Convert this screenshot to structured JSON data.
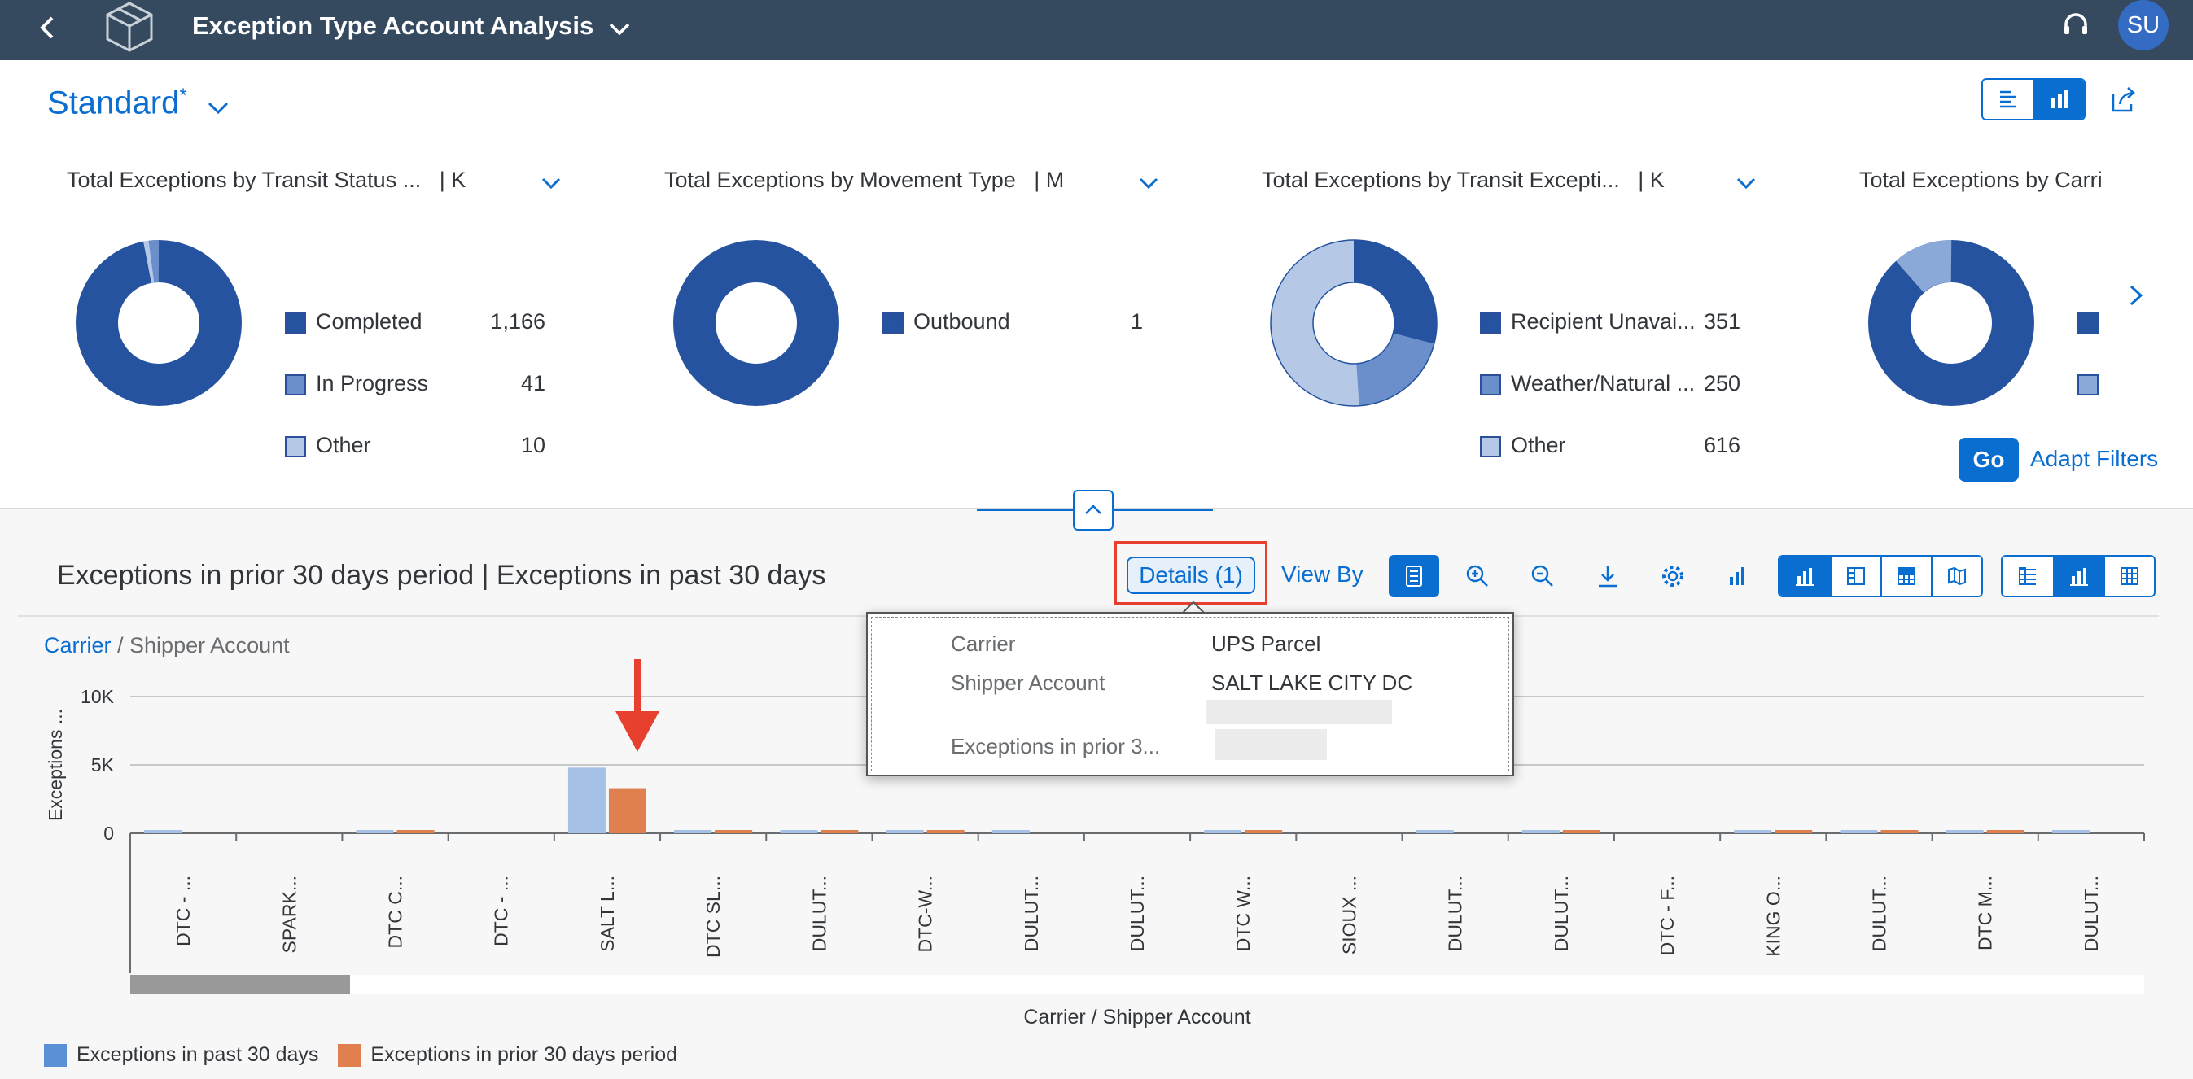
{
  "shell": {
    "title": "Exception Type Account Analysis",
    "avatar_initials": "SU"
  },
  "variant": {
    "name": "Standard",
    "dirty_marker": "*"
  },
  "cards": [
    {
      "title": "Total Exceptions by Transit Status ...",
      "unit": "| K",
      "legend": [
        {
          "label": "Completed",
          "value": "1,166",
          "color": "#2553a0"
        },
        {
          "label": "In Progress",
          "value": "41",
          "color": "#6a8fca"
        },
        {
          "label": "Other",
          "value": "10",
          "color": "#b5c8e6"
        }
      ]
    },
    {
      "title": "Total Exceptions by Movement Type",
      "unit": "| M",
      "legend": [
        {
          "label": "Outbound",
          "value": "1",
          "color": "#2553a0"
        }
      ]
    },
    {
      "title": "Total Exceptions by Transit Excepti...",
      "unit": "| K",
      "legend": [
        {
          "label": "Recipient Unavai...",
          "value": "351",
          "color": "#2553a0"
        },
        {
          "label": "Weather/Natural ...",
          "value": "250",
          "color": "#6a8fca"
        },
        {
          "label": "Other",
          "value": "616",
          "color": "#b5c8e6"
        }
      ]
    },
    {
      "title": "Total Exceptions by Carri",
      "unit": "",
      "legend": []
    }
  ],
  "filterbar": {
    "go_label": "Go",
    "adapt_label": "Adapt Filters"
  },
  "section": {
    "title": "Exceptions in prior 30 days period | Exceptions in past 30 days",
    "details_label": "Details (1)",
    "viewby_label": "View By"
  },
  "breadcrumb": {
    "link": "Carrier",
    "separator": " / ",
    "current": "Shipper Account"
  },
  "popover": {
    "rows": [
      {
        "key": "Carrier",
        "value": "UPS Parcel"
      },
      {
        "key": "Shipper Account",
        "value": "SALT LAKE CITY DC"
      },
      {
        "key": "Exceptions in prior 3...",
        "value": ""
      }
    ]
  },
  "chart_data": {
    "type": "bar",
    "xlabel": "Carrier / Shipper Account",
    "ylabel": "Exceptions ...",
    "ylim": [
      0,
      10000
    ],
    "yticks": [
      "0",
      "5K",
      "10K"
    ],
    "grid": true,
    "categories": [
      "DTC - ...",
      "SPARK...",
      "DTC C...",
      "DTC - ...",
      "SALT L...",
      "DTC SL...",
      "DULUT...",
      "DTC-W...",
      "DULUT...",
      "DULUT...",
      "DTC W...",
      "SIOUX ...",
      "DULUT...",
      "DULUT...",
      "DTC - F...",
      "KING O...",
      "DULUT...",
      "DTC M...",
      "DULUT..."
    ],
    "series": [
      {
        "name": "Exceptions in past 30 days",
        "color": "#a5c1e6",
        "values": [
          200,
          0,
          200,
          0,
          4800,
          200,
          200,
          200,
          200,
          0,
          200,
          0,
          200,
          200,
          0,
          200,
          200,
          200,
          200
        ]
      },
      {
        "name": "Exceptions in prior 30 days period",
        "color": "#e0804f",
        "values": [
          0,
          0,
          200,
          0,
          3300,
          200,
          200,
          200,
          0,
          0,
          200,
          0,
          0,
          200,
          0,
          200,
          200,
          200,
          0
        ]
      }
    ],
    "legend_position": "bottom-left"
  },
  "legend": [
    {
      "label": "Exceptions in past 30 days",
      "color": "#5b8fd6"
    },
    {
      "label": "Exceptions in prior 30 days period",
      "color": "#e0804f"
    }
  ]
}
